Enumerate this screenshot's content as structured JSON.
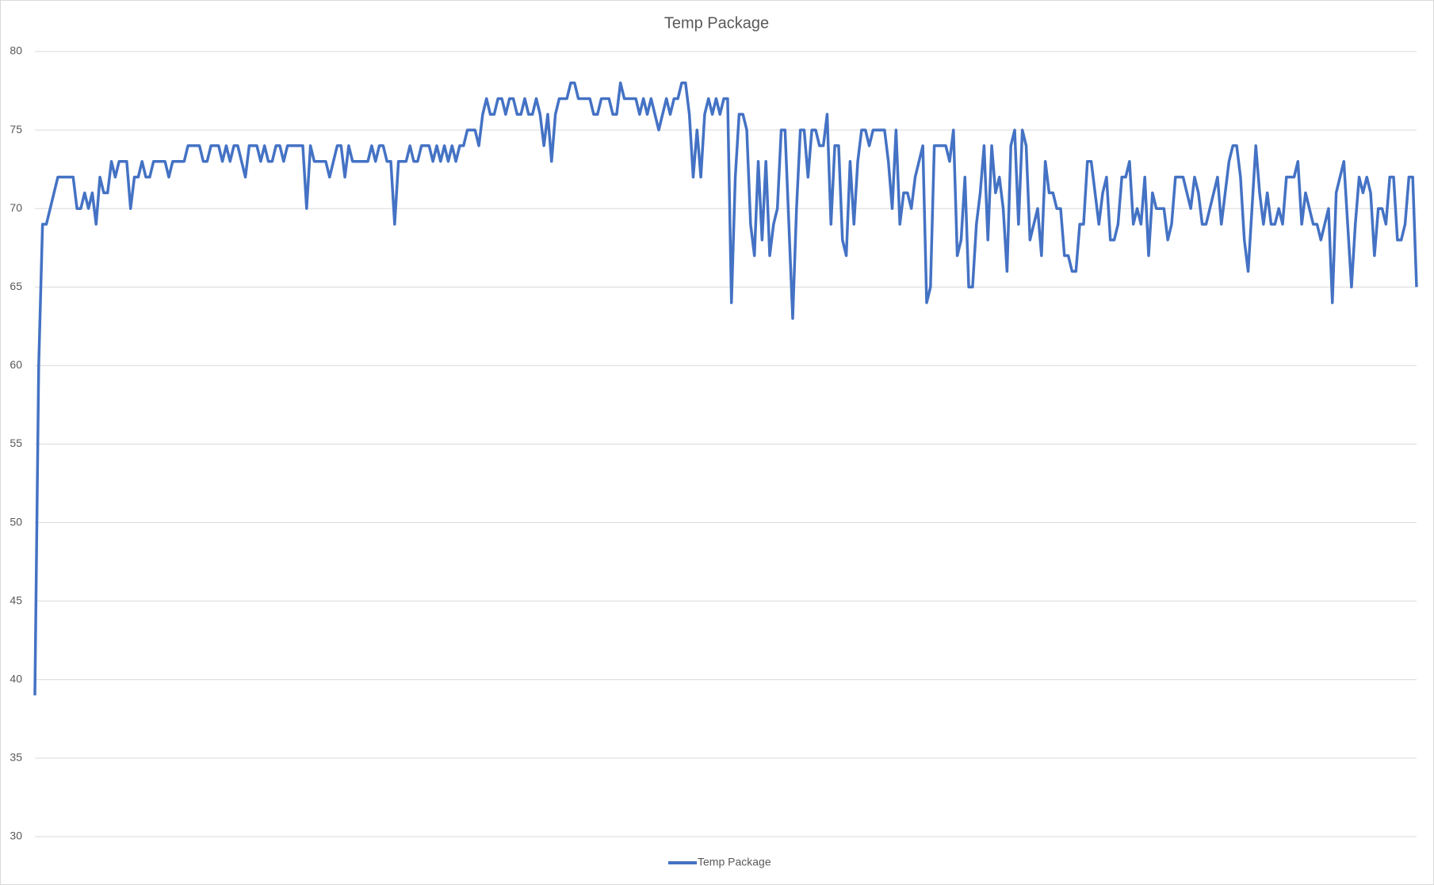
{
  "chart_data": {
    "type": "line",
    "title": "Temp Package",
    "ylim": [
      30,
      80
    ],
    "yticks": [
      30,
      35,
      40,
      45,
      50,
      55,
      60,
      65,
      70,
      75,
      80
    ],
    "grid": true,
    "legend": "bottom",
    "series": [
      {
        "name": "Temp Package",
        "color": "#4472c4",
        "values": [
          39,
          60,
          69,
          69,
          70,
          71,
          72,
          72,
          72,
          72,
          72,
          70,
          70,
          71,
          70,
          71,
          69,
          72,
          71,
          71,
          73,
          72,
          73,
          73,
          73,
          70,
          72,
          72,
          73,
          72,
          72,
          73,
          73,
          73,
          73,
          72,
          73,
          73,
          73,
          73,
          74,
          74,
          74,
          74,
          73,
          73,
          74,
          74,
          74,
          73,
          74,
          73,
          74,
          74,
          73,
          72,
          74,
          74,
          74,
          73,
          74,
          73,
          73,
          74,
          74,
          73,
          74,
          74,
          74,
          74,
          74,
          70,
          74,
          73,
          73,
          73,
          73,
          72,
          73,
          74,
          74,
          72,
          74,
          73,
          73,
          73,
          73,
          73,
          74,
          73,
          74,
          74,
          73,
          73,
          69,
          73,
          73,
          73,
          74,
          73,
          73,
          74,
          74,
          74,
          73,
          74,
          73,
          74,
          73,
          74,
          73,
          74,
          74,
          75,
          75,
          75,
          74,
          76,
          77,
          76,
          76,
          77,
          77,
          76,
          77,
          77,
          76,
          76,
          77,
          76,
          76,
          77,
          76,
          74,
          76,
          73,
          76,
          77,
          77,
          77,
          78,
          78,
          77,
          77,
          77,
          77,
          76,
          76,
          77,
          77,
          77,
          76,
          76,
          78,
          77,
          77,
          77,
          77,
          76,
          77,
          76,
          77,
          76,
          75,
          76,
          77,
          76,
          77,
          77,
          78,
          78,
          76,
          72,
          75,
          72,
          76,
          77,
          76,
          77,
          76,
          77,
          77,
          64,
          72,
          76,
          76,
          75,
          69,
          67,
          73,
          68,
          73,
          67,
          69,
          70,
          75,
          75,
          69,
          63,
          70,
          75,
          75,
          72,
          75,
          75,
          74,
          74,
          76,
          69,
          74,
          74,
          68,
          67,
          73,
          69,
          73,
          75,
          75,
          74,
          75,
          75,
          75,
          75,
          73,
          70,
          75,
          69,
          71,
          71,
          70,
          72,
          73,
          74,
          64,
          65,
          74,
          74,
          74,
          74,
          73,
          75,
          67,
          68,
          72,
          65,
          65,
          69,
          71,
          74,
          68,
          74,
          71,
          72,
          70,
          66,
          74,
          75,
          69,
          75,
          74,
          68,
          69,
          70,
          67,
          73,
          71,
          71,
          70,
          70,
          67,
          67,
          66,
          66,
          69,
          69,
          73,
          73,
          71,
          69,
          71,
          72,
          68,
          68,
          69,
          72,
          72,
          73,
          69,
          70,
          69,
          72,
          67,
          71,
          70,
          70,
          70,
          68,
          69,
          72,
          72,
          72,
          71,
          70,
          72,
          71,
          69,
          69,
          70,
          71,
          72,
          69,
          71,
          73,
          74,
          74,
          72,
          68,
          66,
          70,
          74,
          71,
          69,
          71,
          69,
          69,
          70,
          69,
          72,
          72,
          72,
          73,
          69,
          71,
          70,
          69,
          69,
          68,
          69,
          70,
          64,
          71,
          72,
          73,
          69,
          65,
          69,
          72,
          71,
          72,
          71,
          67,
          70,
          70,
          69,
          72,
          72,
          68,
          68,
          69,
          72,
          72,
          65
        ]
      }
    ]
  }
}
